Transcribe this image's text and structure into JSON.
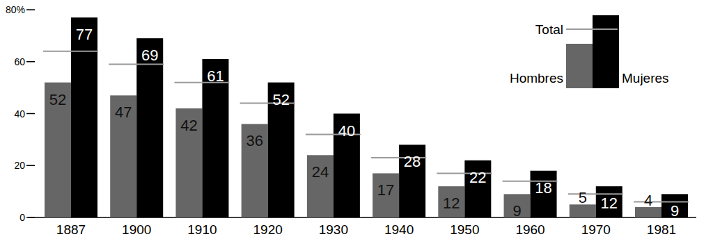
{
  "chart_data": {
    "type": "bar",
    "categories": [
      "1887",
      "1900",
      "1910",
      "1920",
      "1930",
      "1940",
      "1950",
      "1960",
      "1970",
      "1981"
    ],
    "series": [
      {
        "name": "Hombres",
        "type": "bar",
        "color": "#666666",
        "data_labels": true,
        "values": [
          52,
          47,
          42,
          36,
          24,
          17,
          12,
          9,
          5,
          4
        ]
      },
      {
        "name": "Mujeres",
        "type": "bar",
        "color": "#000000",
        "data_labels": true,
        "values": [
          77,
          69,
          61,
          52,
          40,
          28,
          22,
          18,
          12,
          9
        ]
      },
      {
        "name": "Total",
        "type": "line",
        "marker": "dash",
        "line_style": "none",
        "color": "#9a9a9a",
        "data_labels": false,
        "values": [
          64,
          59,
          52,
          44,
          32,
          23,
          17,
          14,
          9,
          6
        ]
      }
    ],
    "ylim": [
      0,
      80
    ],
    "yticks": [
      0,
      20,
      40,
      60,
      {
        "value": 80,
        "label": "80%"
      }
    ],
    "grid": false,
    "legend": "upper right",
    "data_labels": true
  }
}
